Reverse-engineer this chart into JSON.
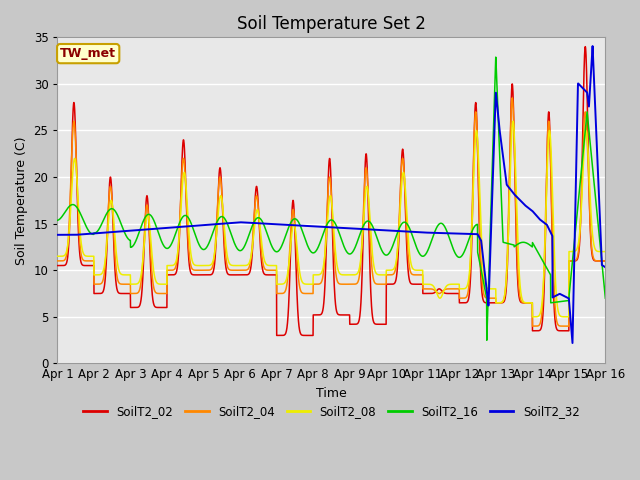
{
  "title": "Soil Temperature Set 2",
  "xlabel": "Time",
  "ylabel": "Soil Temperature (C)",
  "xlim": [
    0,
    15
  ],
  "ylim": [
    0,
    35
  ],
  "yticks": [
    0,
    5,
    10,
    15,
    20,
    25,
    30,
    35
  ],
  "xtick_labels": [
    "Apr 1",
    "Apr 2",
    "Apr 3",
    "Apr 4",
    "Apr 5",
    "Apr 6",
    "Apr 7",
    "Apr 8",
    "Apr 9",
    "Apr 10",
    "Apr 11",
    "Apr 12",
    "Apr 13",
    "Apr 14",
    "Apr 15",
    "Apr 16"
  ],
  "annotation_text": "TW_met",
  "annotation_color": "#8b0000",
  "annotation_bg": "#ffffcc",
  "annotation_border": "#c8a000",
  "series_colors": {
    "SoilT2_02": "#dd0000",
    "SoilT2_04": "#ff8800",
    "SoilT2_08": "#eeee00",
    "SoilT2_16": "#00cc00",
    "SoilT2_32": "#0000dd"
  },
  "bg_color": "#e8e8e8",
  "grid_color": "#ffffff",
  "title_fontsize": 12,
  "axis_fontsize": 9,
  "tick_fontsize": 8.5
}
